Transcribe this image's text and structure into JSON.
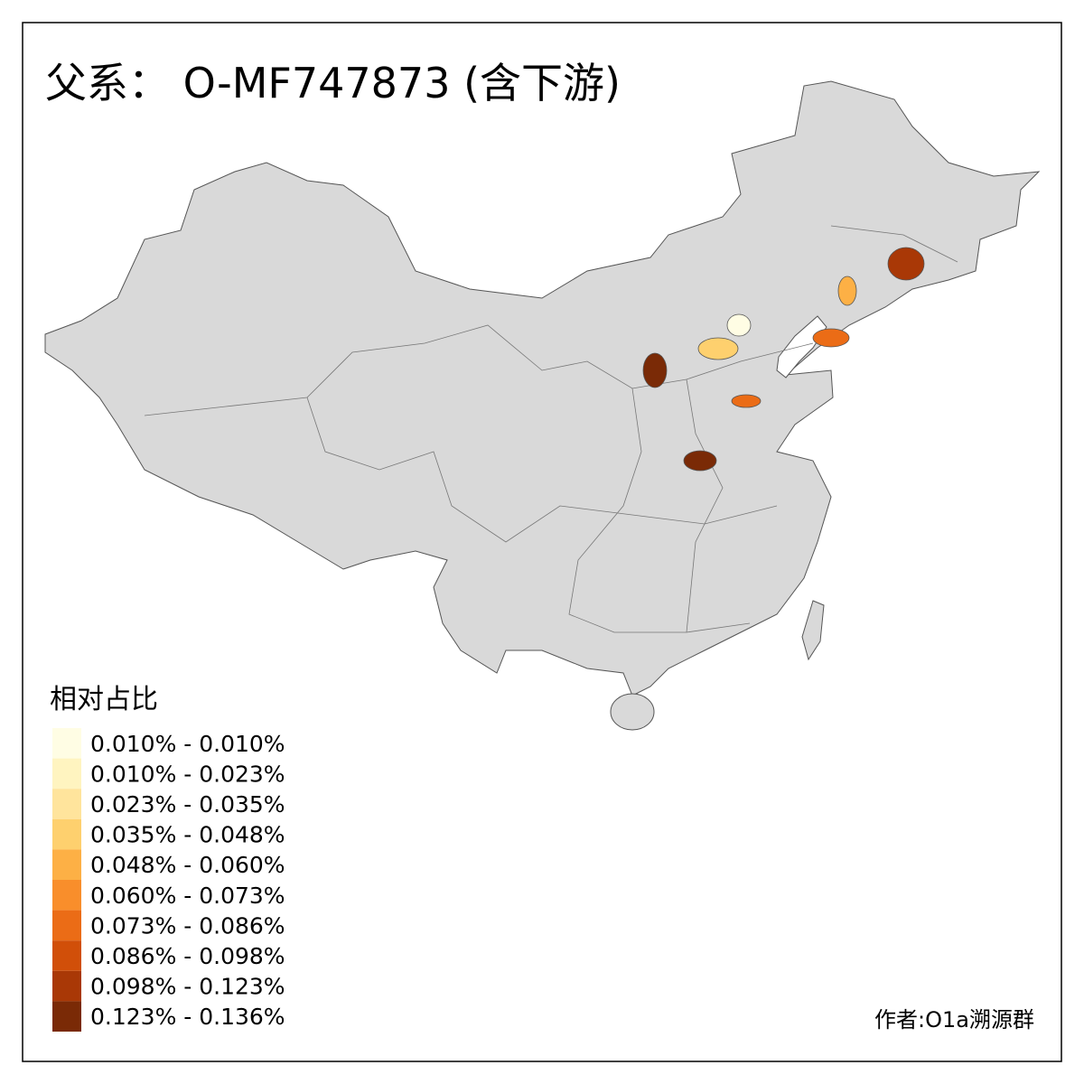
{
  "title": "父系： O-MF747873 (含下游)",
  "legend": {
    "title": "相对占比",
    "items": [
      {
        "label": "0.010% - 0.010%",
        "color": "#fffde4"
      },
      {
        "label": "0.010% - 0.023%",
        "color": "#fff4c0"
      },
      {
        "label": "0.023% - 0.035%",
        "color": "#ffe49c"
      },
      {
        "label": "0.035% - 0.048%",
        "color": "#fed06e"
      },
      {
        "label": "0.048% - 0.060%",
        "color": "#fdb045"
      },
      {
        "label": "0.060% - 0.073%",
        "color": "#f98e2b"
      },
      {
        "label": "0.073% - 0.086%",
        "color": "#eb6c16"
      },
      {
        "label": "0.086% - 0.098%",
        "color": "#d14f09"
      },
      {
        "label": "0.098% - 0.123%",
        "color": "#a93806"
      },
      {
        "label": "0.123% - 0.136%",
        "color": "#7a2a06"
      }
    ]
  },
  "credit": "作者:O1a溯源群"
}
